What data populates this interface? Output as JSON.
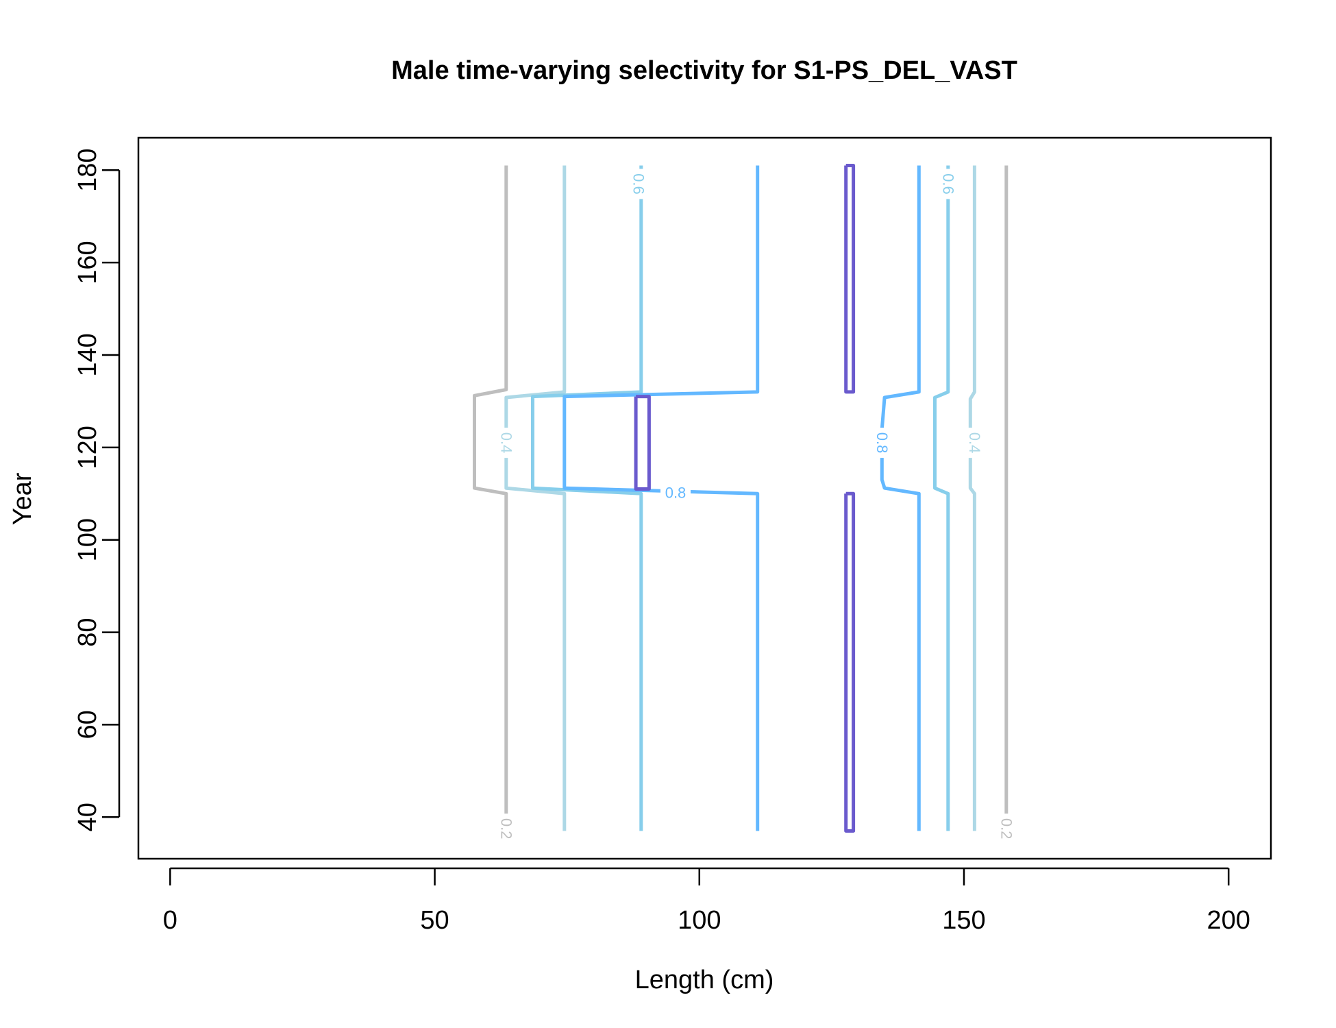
{
  "chart_data": {
    "type": "contour",
    "title": "Male time-varying selectivity for S1-PS_DEL_VAST",
    "xlabel": "Length (cm)",
    "ylabel": "Year",
    "xlim": [
      -6,
      208
    ],
    "ylim": [
      31,
      187
    ],
    "x_ticks": [
      0,
      50,
      100,
      150,
      200
    ],
    "y_ticks": [
      40,
      60,
      80,
      100,
      120,
      140,
      160,
      180
    ],
    "grid": false,
    "legend": "none",
    "levels": [
      {
        "level": 0.2,
        "color": "#bebebe"
      },
      {
        "level": 0.4,
        "color": "#add8e6"
      },
      {
        "level": 0.6,
        "color": "#87ceeb"
      },
      {
        "level": 0.8,
        "color": "#63b8ff"
      },
      {
        "level": 1.0,
        "color": "#6a5acd"
      }
    ],
    "contours": [
      {
        "level": 0.2,
        "points": [
          [
            63.5,
            181
          ],
          [
            63.5,
            132.5
          ],
          [
            57.5,
            131.2
          ],
          [
            57.5,
            111.2
          ],
          [
            63.5,
            110
          ],
          [
            63.5,
            37
          ]
        ]
      },
      {
        "level": 0.2,
        "points": [
          [
            158,
            181
          ],
          [
            158,
            37
          ]
        ]
      },
      {
        "level": 0.4,
        "points": [
          [
            74.5,
            181
          ],
          [
            74.5,
            132
          ],
          [
            63.5,
            130.8
          ],
          [
            63.5,
            111.2
          ],
          [
            74.5,
            110
          ],
          [
            74.5,
            37
          ]
        ]
      },
      {
        "level": 0.4,
        "points": [
          [
            152,
            181
          ],
          [
            152,
            132
          ],
          [
            151.2,
            130.5
          ],
          [
            151.2,
            111.2
          ],
          [
            152,
            110
          ],
          [
            152,
            37
          ]
        ]
      },
      {
        "level": 0.6,
        "points": [
          [
            89,
            181
          ],
          [
            89,
            132
          ],
          [
            68.5,
            131
          ],
          [
            68.5,
            111.2
          ],
          [
            89,
            110
          ],
          [
            89,
            37
          ]
        ]
      },
      {
        "level": 0.6,
        "points": [
          [
            147,
            181
          ],
          [
            147,
            132
          ],
          [
            144.5,
            130.8
          ],
          [
            144.5,
            111.2
          ],
          [
            147,
            110
          ],
          [
            147,
            37
          ]
        ]
      },
      {
        "level": 0.8,
        "points": [
          [
            111,
            181
          ],
          [
            111,
            132
          ],
          [
            74.5,
            131
          ],
          [
            74.5,
            111.2
          ],
          [
            111,
            110
          ],
          [
            111,
            37
          ]
        ]
      },
      {
        "level": 0.8,
        "points": [
          [
            141.5,
            181
          ],
          [
            141.5,
            132
          ],
          [
            135,
            130.8
          ],
          [
            134.5,
            124
          ],
          [
            134.5,
            113
          ],
          [
            135,
            111.2
          ],
          [
            141.5,
            110
          ],
          [
            141.5,
            37
          ]
        ]
      },
      {
        "level": 1.0,
        "points": [
          [
            88,
            131
          ],
          [
            90.5,
            131
          ],
          [
            90.5,
            111
          ],
          [
            88,
            111
          ],
          [
            88,
            131
          ]
        ]
      },
      {
        "level": 1.0,
        "points": [
          [
            127.7,
            181
          ],
          [
            127.7,
            132
          ],
          [
            129.1,
            132
          ],
          [
            129.1,
            181
          ],
          [
            127.7,
            181
          ]
        ]
      },
      {
        "level": 1.0,
        "points": [
          [
            127.7,
            110
          ],
          [
            127.7,
            37
          ],
          [
            129.1,
            37
          ],
          [
            129.1,
            110
          ],
          [
            127.7,
            110
          ]
        ]
      }
    ],
    "contour_labels": [
      {
        "text": "0.6",
        "x": 88.5,
        "y": 177,
        "rotate": 90,
        "level": 0.6
      },
      {
        "text": "0.6",
        "x": 147,
        "y": 177,
        "rotate": 90,
        "level": 0.6
      },
      {
        "text": "0.4",
        "x": 63.5,
        "y": 121,
        "rotate": 90,
        "level": 0.4
      },
      {
        "text": "0.4",
        "x": 152,
        "y": 121,
        "rotate": 90,
        "level": 0.4
      },
      {
        "text": "0.8",
        "x": 134.5,
        "y": 121,
        "rotate": 90,
        "level": 0.8
      },
      {
        "text": "0.8",
        "x": 95.5,
        "y": 110.2,
        "rotate": 0,
        "level": 0.8
      },
      {
        "text": "0.2",
        "x": 63.5,
        "y": 37.5,
        "rotate": 90,
        "level": 0.2
      },
      {
        "text": "0.2",
        "x": 158,
        "y": 37.5,
        "rotate": 90,
        "level": 0.2
      }
    ]
  }
}
